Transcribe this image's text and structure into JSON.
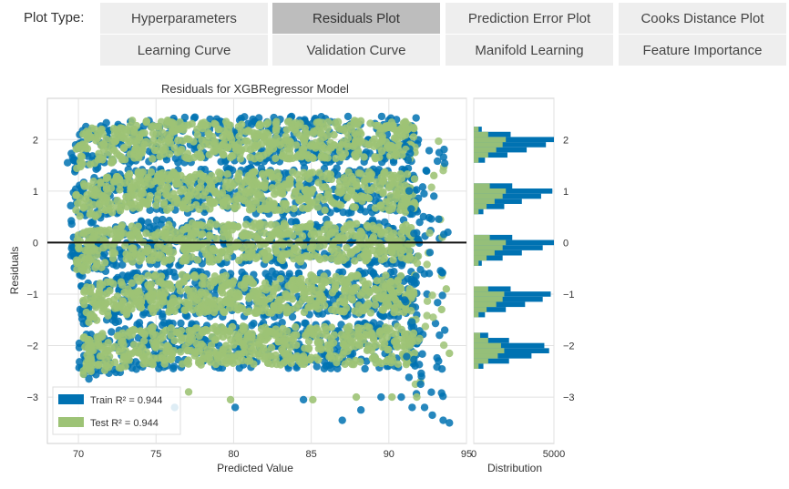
{
  "controls": {
    "plot_type_label": "Plot Type:",
    "tabs": [
      {
        "label": "Hyperparameters",
        "active": false
      },
      {
        "label": "Residuals Plot",
        "active": true
      },
      {
        "label": "Prediction Error Plot",
        "active": false
      },
      {
        "label": "Cooks Distance Plot",
        "active": false
      },
      {
        "label": "Learning Curve",
        "active": false
      },
      {
        "label": "Validation Curve",
        "active": false
      },
      {
        "label": "Manifold Learning",
        "active": false
      },
      {
        "label": "Feature Importance",
        "active": false
      }
    ]
  },
  "chart_data": {
    "type": "scatter",
    "title": "Residuals for XGBRegressor Model",
    "xlabel": "Predicted Value",
    "ylabel": "Residuals",
    "xlim": [
      68,
      95
    ],
    "ylim": [
      -3.9,
      2.8
    ],
    "xticks": [
      70,
      75,
      80,
      85,
      90,
      95
    ],
    "yticks": [
      -3,
      -2,
      -1,
      0,
      1,
      2
    ],
    "grid": true,
    "zero_line": 0,
    "legend_position": "lower-left",
    "colors": {
      "train": "#0072b2",
      "test": "#9dc376",
      "zero_line": "#111111"
    },
    "series": [
      {
        "name": "Train",
        "r2_label": "Train R² = 0.944"
      },
      {
        "name": "Test",
        "r2_label": "Test R² = 0.944"
      }
    ],
    "bands": [
      {
        "center": 2,
        "x_start": 69.5,
        "x_end": 92
      },
      {
        "center": 1,
        "x_start": 69.5,
        "x_end": 92
      },
      {
        "center": 0,
        "x_start": 69.5,
        "x_end": 92
      },
      {
        "center": -1,
        "x_start": 70,
        "x_end": 92
      },
      {
        "center": -2,
        "x_start": 70,
        "x_end": 92
      }
    ],
    "outliers_train": [
      [
        92.3,
        -3.2
      ],
      [
        92.8,
        -3.35
      ],
      [
        93.5,
        -3.45
      ],
      [
        87,
        -3.45
      ],
      [
        92.1,
        -2.6
      ],
      [
        93.2,
        -2.3
      ],
      [
        93.6,
        -1.7
      ],
      [
        92.6,
        -0.6
      ],
      [
        93.8,
        0.2
      ],
      [
        92.9,
        0.9
      ],
      [
        91.5,
        -3.2
      ],
      [
        90.8,
        -3.0
      ],
      [
        89.5,
        -3.0
      ],
      [
        84.5,
        -3.05
      ],
      [
        80.1,
        -3.2
      ],
      [
        76.2,
        -3.2
      ],
      [
        88.2,
        -3.25
      ],
      [
        93.9,
        -3.5
      ],
      [
        92.4,
        1.4
      ],
      [
        69.3,
        1.55
      ]
    ],
    "outliers_test": [
      [
        91.8,
        -3.0
      ],
      [
        90.2,
        -3.0
      ],
      [
        87.9,
        -3.0
      ],
      [
        85.1,
        -3.05
      ],
      [
        79.8,
        -3.05
      ],
      [
        77.1,
        -2.9
      ],
      [
        93.4,
        -1.3
      ],
      [
        93.9,
        -2.15
      ],
      [
        92.9,
        1.3
      ],
      [
        93.7,
        -0.9
      ]
    ],
    "distribution": {
      "xlabel": "Distribution",
      "xlim": [
        0,
        5000
      ],
      "xticks": [
        0,
        5000
      ],
      "yticks": [
        -3,
        -2,
        -1,
        0,
        1,
        2
      ],
      "train_hist": [
        {
          "y0": -2.45,
          "y1": -2.35,
          "count": 600
        },
        {
          "y0": -2.35,
          "y1": -2.25,
          "count": 2200
        },
        {
          "y0": -2.25,
          "y1": -2.15,
          "count": 3600
        },
        {
          "y0": -2.15,
          "y1": -2.05,
          "count": 4700
        },
        {
          "y0": -2.05,
          "y1": -1.95,
          "count": 4400
        },
        {
          "y0": -1.95,
          "y1": -1.85,
          "count": 2200
        },
        {
          "y0": -1.85,
          "y1": -1.75,
          "count": 900
        },
        {
          "y0": -1.45,
          "y1": -1.35,
          "count": 700
        },
        {
          "y0": -1.35,
          "y1": -1.25,
          "count": 2000
        },
        {
          "y0": -1.25,
          "y1": -1.15,
          "count": 3200
        },
        {
          "y0": -1.15,
          "y1": -1.05,
          "count": 4300
        },
        {
          "y0": -1.05,
          "y1": -0.95,
          "count": 4800
        },
        {
          "y0": -0.95,
          "y1": -0.85,
          "count": 2300
        },
        {
          "y0": -0.45,
          "y1": -0.35,
          "count": 500
        },
        {
          "y0": -0.35,
          "y1": -0.25,
          "count": 1800
        },
        {
          "y0": -0.25,
          "y1": -0.15,
          "count": 3000
        },
        {
          "y0": -0.15,
          "y1": -0.05,
          "count": 4300
        },
        {
          "y0": -0.05,
          "y1": 0.05,
          "count": 5000
        },
        {
          "y0": 0.05,
          "y1": 0.15,
          "count": 2400
        },
        {
          "y0": 0.55,
          "y1": 0.65,
          "count": 600
        },
        {
          "y0": 0.65,
          "y1": 0.75,
          "count": 1900
        },
        {
          "y0": 0.75,
          "y1": 0.85,
          "count": 3000
        },
        {
          "y0": 0.85,
          "y1": 0.95,
          "count": 4200
        },
        {
          "y0": 0.95,
          "y1": 1.05,
          "count": 4900
        },
        {
          "y0": 1.05,
          "y1": 1.15,
          "count": 2400
        },
        {
          "y0": 1.55,
          "y1": 1.65,
          "count": 700
        },
        {
          "y0": 1.65,
          "y1": 1.75,
          "count": 2100
        },
        {
          "y0": 1.75,
          "y1": 1.85,
          "count": 3300
        },
        {
          "y0": 1.85,
          "y1": 1.95,
          "count": 4500
        },
        {
          "y0": 1.95,
          "y1": 2.05,
          "count": 5000
        },
        {
          "y0": 2.05,
          "y1": 2.15,
          "count": 2300
        },
        {
          "y0": 2.15,
          "y1": 2.25,
          "count": 500
        }
      ],
      "test_hist": [
        {
          "y0": -2.45,
          "y1": -2.35,
          "count": 300
        },
        {
          "y0": -2.35,
          "y1": -2.25,
          "count": 900
        },
        {
          "y0": -2.25,
          "y1": -2.15,
          "count": 1500
        },
        {
          "y0": -2.15,
          "y1": -2.05,
          "count": 1900
        },
        {
          "y0": -2.05,
          "y1": -1.95,
          "count": 1700
        },
        {
          "y0": -1.95,
          "y1": -1.85,
          "count": 900
        },
        {
          "y0": -1.85,
          "y1": -1.75,
          "count": 400
        },
        {
          "y0": -1.45,
          "y1": -1.35,
          "count": 300
        },
        {
          "y0": -1.35,
          "y1": -1.25,
          "count": 800
        },
        {
          "y0": -1.25,
          "y1": -1.15,
          "count": 1400
        },
        {
          "y0": -1.15,
          "y1": -1.05,
          "count": 1800
        },
        {
          "y0": -1.05,
          "y1": -0.95,
          "count": 1900
        },
        {
          "y0": -0.95,
          "y1": -0.85,
          "count": 900
        },
        {
          "y0": -0.45,
          "y1": -0.35,
          "count": 300
        },
        {
          "y0": -0.35,
          "y1": -0.25,
          "count": 800
        },
        {
          "y0": -0.25,
          "y1": -0.15,
          "count": 1300
        },
        {
          "y0": -0.15,
          "y1": -0.05,
          "count": 1800
        },
        {
          "y0": -0.05,
          "y1": 0.05,
          "count": 2000
        },
        {
          "y0": 0.05,
          "y1": 0.15,
          "count": 1000
        },
        {
          "y0": 0.55,
          "y1": 0.65,
          "count": 300
        },
        {
          "y0": 0.65,
          "y1": 0.75,
          "count": 800
        },
        {
          "y0": 0.75,
          "y1": 0.85,
          "count": 1300
        },
        {
          "y0": 0.85,
          "y1": 0.95,
          "count": 1800
        },
        {
          "y0": 0.95,
          "y1": 1.05,
          "count": 2000
        },
        {
          "y0": 1.05,
          "y1": 1.15,
          "count": 1000
        },
        {
          "y0": 1.55,
          "y1": 1.65,
          "count": 300
        },
        {
          "y0": 1.65,
          "y1": 1.75,
          "count": 900
        },
        {
          "y0": 1.75,
          "y1": 1.85,
          "count": 1400
        },
        {
          "y0": 1.85,
          "y1": 1.95,
          "count": 1800
        },
        {
          "y0": 1.95,
          "y1": 2.05,
          "count": 2000
        },
        {
          "y0": 2.05,
          "y1": 2.15,
          "count": 900
        },
        {
          "y0": 2.15,
          "y1": 2.25,
          "count": 300
        }
      ]
    }
  }
}
